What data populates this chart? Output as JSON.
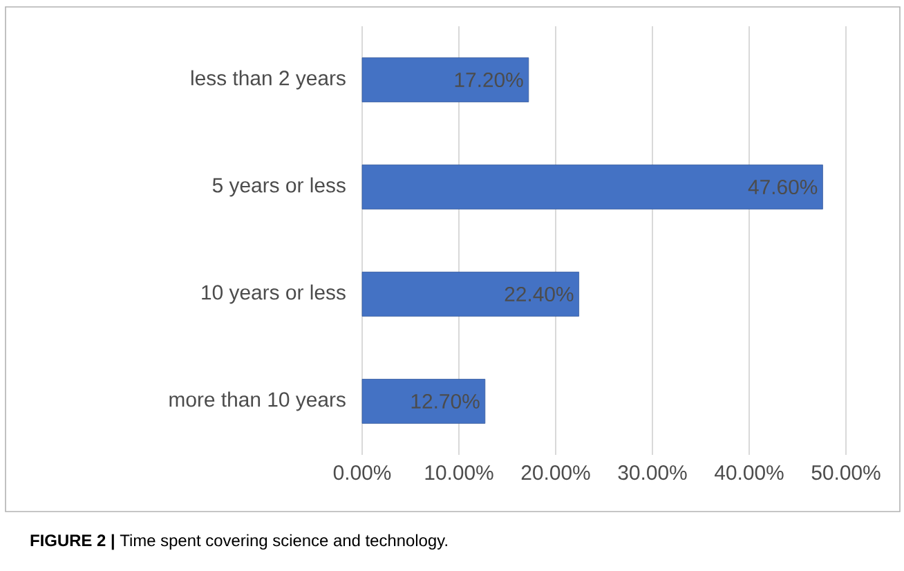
{
  "chart_data": {
    "type": "bar",
    "orientation": "horizontal",
    "categories": [
      "less than 2 years",
      "5  years or less",
      "10 years or less",
      "more than 10 years"
    ],
    "values": [
      17.2,
      47.6,
      22.4,
      12.7
    ],
    "value_labels": [
      "17.20%",
      "47.60%",
      "22.40%",
      "12.70%"
    ],
    "color": "#4472c4",
    "xlim": [
      0,
      50
    ],
    "xticks": [
      {
        "value": 0,
        "label": "0.00%"
      },
      {
        "value": 10,
        "label": "10.00%"
      },
      {
        "value": 20,
        "label": "20.00%"
      },
      {
        "value": 30,
        "label": "30.00%"
      },
      {
        "value": 40,
        "label": "40.00%"
      },
      {
        "value": 50,
        "label": "50.00%"
      }
    ],
    "grid": "x",
    "annotations": [
      "**FIGURE 2 |** Time spent covering science and technology."
    ]
  }
}
